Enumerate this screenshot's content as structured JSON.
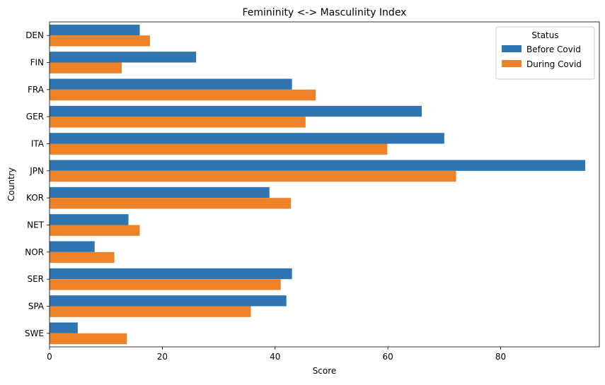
{
  "chart_data": {
    "type": "bar",
    "orientation": "horizontal",
    "title": "Femininity <-> Masculinity Index",
    "xlabel": "Score",
    "ylabel": "Country",
    "xlim": [
      0,
      97.5
    ],
    "xticks": [
      0,
      20,
      40,
      60,
      80
    ],
    "categories": [
      "DEN",
      "FIN",
      "FRA",
      "GER",
      "ITA",
      "JPN",
      "KOR",
      "NET",
      "NOR",
      "SER",
      "SPA",
      "SWE"
    ],
    "series": [
      {
        "name": "Before Covid",
        "color": "#2e75b1",
        "values": [
          16,
          26,
          43,
          66,
          70,
          95,
          39,
          14,
          8,
          43,
          42,
          5
        ]
      },
      {
        "name": "During Covid",
        "color": "#ed8229",
        "values": [
          17.8,
          12.8,
          47.2,
          45.4,
          59.9,
          72.1,
          42.8,
          16,
          11.5,
          41,
          35.7,
          13.7
        ]
      }
    ],
    "legend": {
      "title": "Status",
      "placement": "top-right"
    },
    "grid": false
  }
}
